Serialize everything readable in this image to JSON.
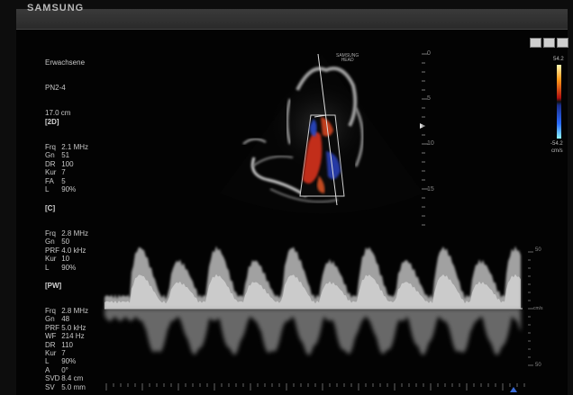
{
  "header": {
    "brand": "SAMSUNG"
  },
  "study": {
    "preset": "Erwachsene",
    "probe": "PN2-4",
    "depth": "17.0 cm"
  },
  "mode_2d": {
    "title": "[2D]",
    "params": [
      {
        "k": "Frq",
        "v": "2.1 MHz"
      },
      {
        "k": "Gn",
        "v": "51"
      },
      {
        "k": "DR",
        "v": "100"
      },
      {
        "k": "Kur",
        "v": "7"
      },
      {
        "k": "FA",
        "v": "5"
      },
      {
        "k": "L",
        "v": "90%"
      }
    ]
  },
  "mode_c": {
    "title": "[C]",
    "params": [
      {
        "k": "Frq",
        "v": "2.8 MHz"
      },
      {
        "k": "Gn",
        "v": "50"
      },
      {
        "k": "PRF",
        "v": "4.0 kHz"
      },
      {
        "k": "Kur",
        "v": "10"
      },
      {
        "k": "L",
        "v": "90%"
      }
    ]
  },
  "mode_pw": {
    "title": "[PW]",
    "params": [
      {
        "k": "Frq",
        "v": "2.8 MHz"
      },
      {
        "k": "Gn",
        "v": "48"
      },
      {
        "k": "PRF",
        "v": "5.0 kHz"
      },
      {
        "k": "WF",
        "v": "214 Hz"
      },
      {
        "k": "DR",
        "v": "110"
      },
      {
        "k": "Kur",
        "v": "7"
      },
      {
        "k": "L",
        "v": "90%"
      },
      {
        "k": "A",
        "v": "0°"
      },
      {
        "k": "SVD",
        "v": "8.4 cm"
      },
      {
        "k": "SV",
        "v": "5.0 mm"
      }
    ]
  },
  "color_bar": {
    "top": "54.2",
    "bottom": "-54.2",
    "unit": "cm/s"
  },
  "depth_scale": [
    "0",
    "5",
    "10",
    "15"
  ],
  "velocity_scale": [
    "50",
    "cm/s",
    "50"
  ],
  "colors": {
    "red": "#e23a1c",
    "blue": "#2a48c8",
    "gray": "#cfcfcf"
  }
}
